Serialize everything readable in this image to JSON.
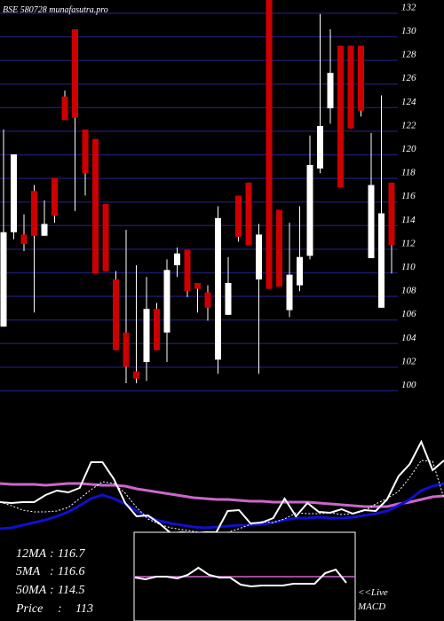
{
  "header": {
    "title": "BSE 580728 munafasutra.pro"
  },
  "colors": {
    "background": "#000000",
    "gridline": "#1a1a6e",
    "up_candle": "#ffffff",
    "down_candle": "#cc0000",
    "wick": "#ffffff",
    "ma_long": "#cc66cc",
    "ma_mid": "#1010cc",
    "price_line": "#ffffff"
  },
  "stats": [
    {
      "label": "12MA",
      "value": "116.7"
    },
    {
      "label": "5MA",
      "value": "116.6"
    },
    {
      "label": "50MA",
      "value": "114.5"
    },
    {
      "label": "Price",
      "value": "113"
    }
  ],
  "macd": {
    "live_label": "<<Live",
    "macd_label": "MACD"
  },
  "chart_data": {
    "type": "candlestick",
    "title": "BSE 580728 munafasutra.pro",
    "y_ticks": [
      132,
      130,
      128,
      126,
      124,
      122,
      120,
      118,
      116,
      114,
      112,
      110,
      108,
      106,
      104,
      102,
      100
    ],
    "ylim": [
      99.6,
      132.7
    ],
    "candles": [
      {
        "open": 104.8,
        "close": 112.8,
        "high": 121.5,
        "low": 104.8
      },
      {
        "open": 112.8,
        "close": 119.4,
        "high": 119.4,
        "low": 112.2
      },
      {
        "open": 112.6,
        "close": 111.8,
        "high": 114.3,
        "low": 111.2
      },
      {
        "open": 116.3,
        "close": 112.5,
        "high": 116.8,
        "low": 106.0
      },
      {
        "open": 112.5,
        "close": 113.5,
        "high": 115.5,
        "low": 112.5
      },
      {
        "open": 117.4,
        "close": 114.2,
        "high": 117.4,
        "low": 113.6
      },
      {
        "open": 124.3,
        "close": 122.3,
        "high": 124.8,
        "low": 122.3
      },
      {
        "open": 130.0,
        "close": 122.5,
        "high": 130.0,
        "low": 114.6
      },
      {
        "open": 121.5,
        "close": 117.8,
        "high": 121.5,
        "low": 115.9
      },
      {
        "open": 120.7,
        "close": 109.3,
        "high": 120.7,
        "low": 109.3
      },
      {
        "open": 115.2,
        "close": 109.5,
        "high": 115.2,
        "low": 109.5
      },
      {
        "open": 108.8,
        "close": 102.8,
        "high": 109.5,
        "low": 102.8
      },
      {
        "open": 104.3,
        "close": 101.4,
        "high": 113.0,
        "low": 100.0
      },
      {
        "open": 101.0,
        "close": 100.4,
        "high": 110.0,
        "low": 100.0
      },
      {
        "open": 101.8,
        "close": 106.3,
        "high": 109.0,
        "low": 100.2
      },
      {
        "open": 106.3,
        "close": 102.8,
        "high": 106.8,
        "low": 102.8
      },
      {
        "open": 104.3,
        "close": 109.6,
        "high": 110.5,
        "low": 101.8
      },
      {
        "open": 110.0,
        "close": 111.0,
        "high": 111.5,
        "low": 109.0
      },
      {
        "open": 111.3,
        "close": 107.8,
        "high": 111.3,
        "low": 107.3
      },
      {
        "open": 108.5,
        "close": 108.0,
        "high": 108.5,
        "low": 106.0
      },
      {
        "open": 107.7,
        "close": 106.4,
        "high": 108.3,
        "low": 105.3
      },
      {
        "open": 102.0,
        "close": 114.0,
        "high": 115.0,
        "low": 100.8
      },
      {
        "open": 105.8,
        "close": 108.5,
        "high": 110.7,
        "low": 105.8
      },
      {
        "open": 115.9,
        "close": 112.4,
        "high": 115.9,
        "low": 112.0
      },
      {
        "open": 117.0,
        "close": 111.7,
        "high": 117.0,
        "low": 111.7
      },
      {
        "open": 108.8,
        "close": 112.6,
        "high": 113.5,
        "low": 100.8
      },
      {
        "open": 133.0,
        "close": 108.0,
        "high": 133.0,
        "low": 108.0
      },
      {
        "open": 114.7,
        "close": 108.2,
        "high": 114.7,
        "low": 108.2
      },
      {
        "open": 106.2,
        "close": 109.2,
        "high": 113.6,
        "low": 105.6
      },
      {
        "open": 108.3,
        "close": 110.7,
        "high": 115.0,
        "low": 107.8
      },
      {
        "open": 110.8,
        "close": 118.5,
        "high": 121.0,
        "low": 110.5
      },
      {
        "open": 118.2,
        "close": 121.8,
        "high": 131.3,
        "low": 117.8
      },
      {
        "open": 123.3,
        "close": 126.3,
        "high": 130.0,
        "low": 122.0
      },
      {
        "open": 128.6,
        "close": 116.6,
        "high": 128.6,
        "low": 116.6
      },
      {
        "open": 128.6,
        "close": 121.6,
        "high": 128.6,
        "low": 121.6
      },
      {
        "open": 128.6,
        "close": 123.1,
        "high": 128.6,
        "low": 122.6
      },
      {
        "open": 110.6,
        "close": 116.8,
        "high": 121.2,
        "low": 110.6
      },
      {
        "open": 106.4,
        "close": 114.4,
        "high": 124.4,
        "low": 106.4
      },
      {
        "open": 117.0,
        "close": 111.7,
        "high": 117.0,
        "low": 109.3
      }
    ],
    "indicator_lines": {
      "ma_long": [
        545,
        546,
        546,
        546,
        547,
        546,
        545,
        545,
        546,
        547,
        547,
        548,
        551,
        553,
        555,
        557,
        559,
        561,
        562,
        563,
        563,
        564,
        565,
        565,
        566,
        566,
        566,
        566,
        567,
        568,
        569,
        570,
        571,
        571,
        571,
        568,
        566,
        563,
        560,
        559
      ],
      "ma_mid": [
        596,
        595,
        592,
        589,
        586,
        582,
        577,
        570,
        562,
        558,
        562,
        568,
        576,
        583,
        587,
        590,
        592,
        594,
        595,
        594,
        593,
        592,
        592,
        591,
        589,
        586,
        584,
        584,
        583,
        584,
        584,
        583,
        581,
        579,
        576,
        570,
        563,
        553,
        548,
        545
      ],
      "ma_fast": [
        566,
        570,
        575,
        577,
        577,
        576,
        572,
        562,
        552,
        543,
        545,
        556,
        572,
        585,
        591,
        595,
        597,
        599,
        601,
        603,
        600,
        596,
        591,
        588,
        589,
        585,
        578,
        579,
        579,
        578,
        580,
        579,
        576,
        568,
        562,
        554,
        538,
        519,
        520,
        562
      ],
      "price_path": [
        566,
        567,
        566,
        566,
        558,
        553,
        555,
        550,
        521,
        521,
        540,
        567,
        582,
        581,
        590,
        601,
        600,
        601,
        600,
        600,
        576,
        575,
        590,
        589,
        584,
        562,
        582,
        567,
        577,
        578,
        574,
        579,
        575,
        576,
        563,
        537,
        523,
        498,
        530,
        519
      ]
    },
    "macd_line": [
      651,
      653,
      650,
      650,
      652,
      648,
      640,
      648,
      651,
      651,
      659,
      661,
      660,
      660,
      660,
      658,
      658,
      658,
      646,
      642,
      657
    ]
  }
}
